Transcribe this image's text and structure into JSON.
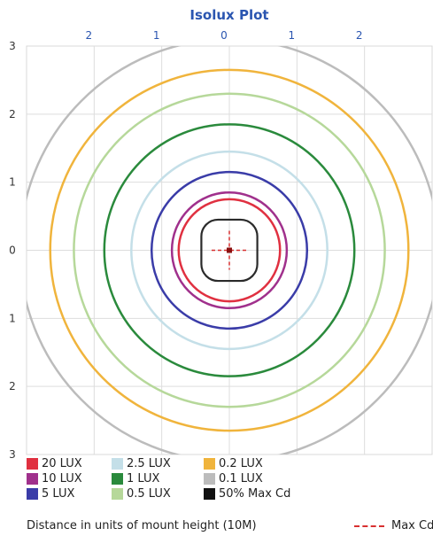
{
  "chart_data": {
    "type": "contour",
    "title": "Isolux Plot",
    "xlabel": "Distance in units of mount height (10M)",
    "x_ticks": [
      "2",
      "1",
      "0",
      "1",
      "2"
    ],
    "y_ticks": [
      "3",
      "2",
      "1",
      "0",
      "1",
      "2",
      "3"
    ],
    "xlim": [
      -3,
      3
    ],
    "ylim": [
      -3,
      3
    ],
    "grid": true,
    "contours": [
      {
        "label": "20 LUX",
        "color": "#e03040",
        "radius": 0.75
      },
      {
        "label": "10 LUX",
        "color": "#a0308c",
        "radius": 0.85
      },
      {
        "label": "5 LUX",
        "color": "#3a3ca8",
        "radius": 1.15
      },
      {
        "label": "2.5 LUX",
        "color": "#c4dfe8",
        "radius": 1.45
      },
      {
        "label": "1 LUX",
        "color": "#2a8a3c",
        "radius": 1.85
      },
      {
        "label": "0.5 LUX",
        "color": "#b6d89a",
        "radius": 2.3
      },
      {
        "label": "0.2 LUX",
        "color": "#f0b43c",
        "radius": 2.65
      },
      {
        "label": "0.1 LUX",
        "color": "#bcbcbc",
        "radius": 3.1
      }
    ],
    "max_cd_contour": {
      "label": "50% Max Cd",
      "color": "#2a2a2a",
      "radius": 0.45
    },
    "max_cd_marker": {
      "label": "Max Cd",
      "color": "#d83030",
      "x": 0,
      "y": 0
    },
    "legend_position": "bottom",
    "legend": [
      {
        "label": "20 LUX",
        "color": "#e03040"
      },
      {
        "label": "2.5 LUX",
        "color": "#c4dfe8"
      },
      {
        "label": "0.2 LUX",
        "color": "#f0b43c"
      },
      {
        "label": "10 LUX",
        "color": "#a0308c"
      },
      {
        "label": "1 LUX",
        "color": "#2a8a3c"
      },
      {
        "label": "0.1 LUX",
        "color": "#bcbcbc"
      },
      {
        "label": "5 LUX",
        "color": "#3a3ca8"
      },
      {
        "label": "0.5 LUX",
        "color": "#b6d89a"
      },
      {
        "label": "50% Max Cd",
        "color": "#111111"
      }
    ],
    "legend_max_label": "Max Cd"
  },
  "colors": {
    "title": "#2a55b0",
    "tick": "#2a55b0",
    "grid": "#dddddd",
    "frame": "#d8d8d8"
  }
}
